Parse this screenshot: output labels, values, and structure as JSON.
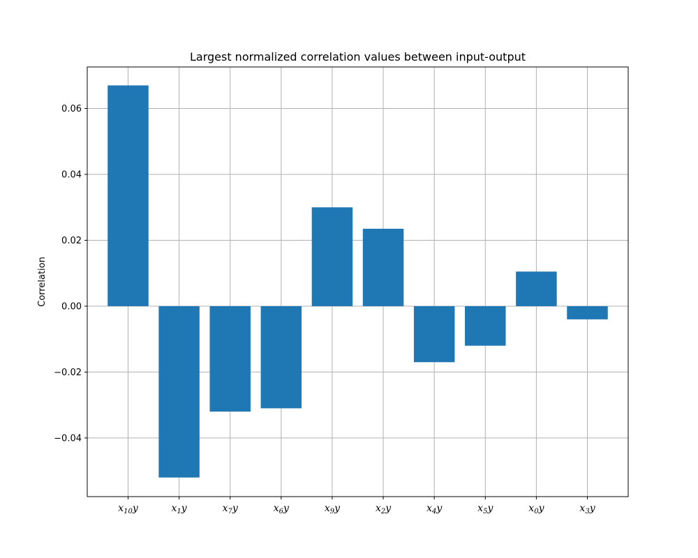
{
  "chart_data": {
    "type": "bar",
    "title": "Largest normalized correlation values between input-output",
    "xlabel": "",
    "ylabel": "Correlation",
    "categories": [
      {
        "base": "x",
        "sub": "10",
        "suffix": "y"
      },
      {
        "base": "x",
        "sub": "1",
        "suffix": "y"
      },
      {
        "base": "x",
        "sub": "7",
        "suffix": "y"
      },
      {
        "base": "x",
        "sub": "6",
        "suffix": "y"
      },
      {
        "base": "x",
        "sub": "9",
        "suffix": "y"
      },
      {
        "base": "x",
        "sub": "2",
        "suffix": "y"
      },
      {
        "base": "x",
        "sub": "4",
        "suffix": "y"
      },
      {
        "base": "x",
        "sub": "5",
        "suffix": "y"
      },
      {
        "base": "x",
        "sub": "0",
        "suffix": "y"
      },
      {
        "base": "x",
        "sub": "3",
        "suffix": "y"
      }
    ],
    "values": [
      0.067,
      -0.052,
      -0.032,
      -0.031,
      0.03,
      0.0235,
      -0.017,
      -0.012,
      0.0105,
      -0.004
    ],
    "ylim": [
      -0.0578,
      0.0726
    ],
    "yticks": [
      -0.04,
      -0.02,
      0.0,
      0.02,
      0.04,
      0.06
    ],
    "ytick_labels": [
      "−0.04",
      "−0.02",
      "0.00",
      "0.02",
      "0.04",
      "0.06"
    ],
    "grid": true,
    "bar_color": "#1f77b4",
    "grid_color": "#b0b0b0"
  }
}
